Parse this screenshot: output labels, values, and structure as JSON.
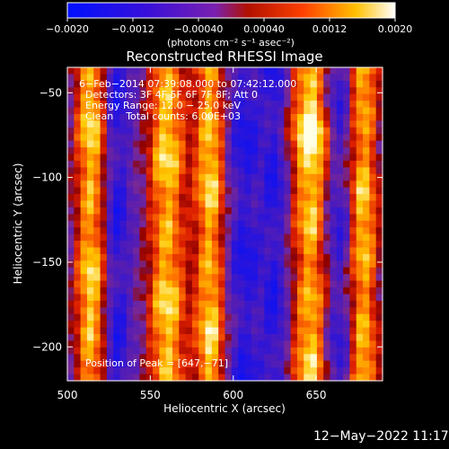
{
  "chart_data": {
    "type": "heatmap",
    "title": "Reconstructed RHESSI Image",
    "xlabel": "Heliocentric X (arcsec)",
    "ylabel": "Heliocentric Y (arcsec)",
    "xlim": [
      500,
      690
    ],
    "ylim": [
      -220,
      -35
    ],
    "x_ticks": [
      500,
      550,
      600,
      650
    ],
    "x_tick_labels": [
      "500",
      "550",
      "600",
      "650"
    ],
    "y_ticks": [
      -50,
      -100,
      -150,
      -200
    ],
    "y_tick_labels": [
      "−50",
      "−100",
      "−150",
      "−200"
    ],
    "colorbar": {
      "min": -0.002,
      "max": 0.002,
      "ticks": [
        -0.002,
        -0.0012,
        -0.0004,
        0.0004,
        0.0012,
        0.002
      ],
      "tick_labels": [
        "−0.0020",
        "−0.0012",
        "−0.00040",
        "0.00040",
        "0.0012",
        "0.0020"
      ],
      "unit_label": "(photons cm⁻² s⁻¹ asec⁻²)"
    },
    "annotations": [
      "6−Feb−2014 07:39:08.000 to 07:42:12.000",
      "Detectors: 3F 4F 5F 6F 7F 8F; Att 0",
      "Energy Range: 12.0 − 25.0 keV",
      "Clean    Total counts: 6.00E+03"
    ],
    "peak_label": "Position of Peak = [647,−71]",
    "peak": [
      647,
      -71
    ],
    "bright_ridges_x": [
      514,
      560,
      586,
      647,
      678
    ],
    "dark_ridges_x": [
      530,
      607,
      625,
      663
    ]
  },
  "footer": {
    "timestamp": "12−May−2022 11:17"
  }
}
